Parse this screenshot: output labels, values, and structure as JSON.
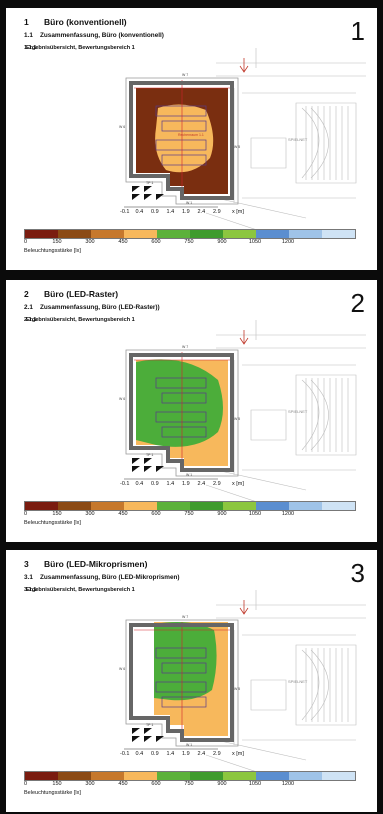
{
  "panels": [
    {
      "big_number": "1",
      "heading": {
        "num": "1",
        "text": "Büro (konventionell)"
      },
      "sub": {
        "num": "1.1",
        "text": "Zusammenfassung, Büro (konventionell)"
      },
      "subsub": {
        "num": "1.1.1",
        "text": "Ergebnisübersicht, Bewertungsbereich 1"
      },
      "fill": "brown",
      "room_label": "Rechenraum 1.1"
    },
    {
      "big_number": "2",
      "heading": {
        "num": "2",
        "text": "Büro (LED-Raster)"
      },
      "sub": {
        "num": "2.1",
        "text": "Zusammenfassung, Büro (LED-Raster))"
      },
      "subsub": {
        "num": "2.1.1",
        "text": "Ergebnisübersicht, Bewertungsbereich 1"
      },
      "fill": "green",
      "room_label": ""
    },
    {
      "big_number": "3",
      "heading": {
        "num": "3",
        "text": "Büro (LED-Mikroprismen)"
      },
      "sub": {
        "num": "3.1",
        "text": "Zusammenfassung, Büro (LED-Mikroprismen)"
      },
      "subsub": {
        "num": "3.1.1",
        "text": "Ergebnisübersicht, Bewertungsbereich 1"
      },
      "fill": "green-small",
      "room_label": ""
    }
  ],
  "meter_ticks": [
    "-0.1",
    "0.4",
    "0.9",
    "1.4",
    "1.9",
    "2.4",
    "2.9"
  ],
  "meter_unit": "x [m]",
  "legend": {
    "colors": [
      "#7a1c10",
      "#8b4a14",
      "#c6782c",
      "#f7b85c",
      "#5cb13a",
      "#3f9b2e",
      "#8cc63f",
      "#5b8ed0",
      "#9fc3e8",
      "#cfe3f5"
    ],
    "ticks": [
      "0",
      "150",
      "300",
      "450",
      "600",
      "750",
      "900",
      "1050",
      "1200"
    ],
    "unit_label": "Beleuchtungsstärke [lx]"
  },
  "plan_labels": {
    "stair": "SPIELNET",
    "w_labels": [
      "W 7",
      "W 6",
      "W 5",
      "W 1"
    ],
    "door_label": "TP 1"
  },
  "colors": {
    "brown_fill": "#7a2e10",
    "orange_fill": "#f7b85c",
    "green_fill": "#4cad3a",
    "wall": "#666666",
    "red_line": "#d2232a"
  }
}
